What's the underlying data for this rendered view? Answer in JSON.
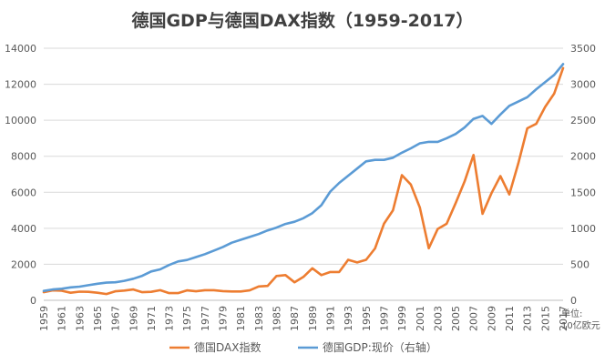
{
  "chart_data": {
    "type": "line",
    "title": "德国GDP与德国DAX指数（1959-2017）",
    "unit_label_line1": "单位:",
    "unit_label_line2": "10亿欧元",
    "x_ticks": [
      "1959",
      "1961",
      "1963",
      "1965",
      "1967",
      "1969",
      "1971",
      "1973",
      "1975",
      "1977",
      "1979",
      "1981",
      "1983",
      "1985",
      "1987",
      "1989",
      "1991",
      "1993",
      "1995",
      "1997",
      "1999",
      "2001",
      "2003",
      "2005",
      "2007",
      "2009",
      "2011",
      "2013",
      "2015",
      "2017"
    ],
    "y_left": {
      "min": 0,
      "max": 14000,
      "ticks": [
        "0",
        "2000",
        "4000",
        "6000",
        "8000",
        "10000",
        "12000",
        "14000"
      ]
    },
    "y_right": {
      "min": 0,
      "max": 3500,
      "ticks": [
        "0",
        "500",
        "1000",
        "1500",
        "2000",
        "2500",
        "3000",
        "3500"
      ]
    },
    "grid": true,
    "legend_position": "bottom",
    "series": [
      {
        "name": "德国DAX指数",
        "axis": "left",
        "color": "#ED7D31",
        "x": [
          1959,
          1960,
          1961,
          1962,
          1963,
          1964,
          1965,
          1966,
          1967,
          1968,
          1969,
          1970,
          1971,
          1972,
          1973,
          1974,
          1975,
          1976,
          1977,
          1978,
          1979,
          1980,
          1981,
          1982,
          1983,
          1984,
          1985,
          1986,
          1987,
          1988,
          1989,
          1990,
          1991,
          1992,
          1993,
          1994,
          1995,
          1996,
          1997,
          1998,
          1999,
          2000,
          2001,
          2002,
          2003,
          2004,
          2005,
          2006,
          2007,
          2008,
          2009,
          2010,
          2011,
          2012,
          2013,
          2014,
          2015,
          2016,
          2017
        ],
        "values": [
          450,
          550,
          530,
          420,
          480,
          470,
          420,
          350,
          500,
          540,
          600,
          450,
          470,
          560,
          400,
          400,
          550,
          500,
          560,
          560,
          510,
          490,
          490,
          550,
          770,
          800,
          1350,
          1400,
          1000,
          1300,
          1780,
          1400,
          1570,
          1570,
          2250,
          2100,
          2250,
          2880,
          4250,
          5000,
          6950,
          6430,
          5150,
          2890,
          3960,
          4250,
          5400,
          6600,
          8070,
          4800,
          5950,
          6900,
          5880,
          7610,
          9550,
          9800,
          10740,
          11480,
          12900
        ]
      },
      {
        "name": "德国GDP:现价（右轴）",
        "axis": "right",
        "color": "#5B9BD5",
        "x": [
          1959,
          1960,
          1961,
          1962,
          1963,
          1964,
          1965,
          1966,
          1967,
          1968,
          1969,
          1970,
          1971,
          1972,
          1973,
          1974,
          1975,
          1976,
          1977,
          1978,
          1979,
          1980,
          1981,
          1982,
          1983,
          1984,
          1985,
          1986,
          1987,
          1988,
          1989,
          1990,
          1991,
          1992,
          1993,
          1994,
          1995,
          1996,
          1997,
          1998,
          1999,
          2000,
          2001,
          2002,
          2003,
          2004,
          2005,
          2006,
          2007,
          2008,
          2009,
          2010,
          2011,
          2012,
          2013,
          2014,
          2015,
          2016,
          2017
        ],
        "values": [
          130,
          150,
          160,
          180,
          190,
          210,
          230,
          245,
          250,
          270,
          300,
          340,
          400,
          430,
          490,
          540,
          560,
          600,
          640,
          690,
          740,
          800,
          840,
          880,
          920,
          970,
          1010,
          1060,
          1090,
          1140,
          1210,
          1320,
          1510,
          1630,
          1730,
          1830,
          1930,
          1950,
          1950,
          1980,
          2050,
          2110,
          2180,
          2200,
          2200,
          2250,
          2310,
          2400,
          2520,
          2560,
          2450,
          2580,
          2700,
          2760,
          2820,
          2930,
          3030,
          3130,
          3280
        ]
      }
    ]
  }
}
